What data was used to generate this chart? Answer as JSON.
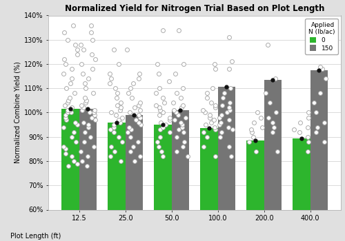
{
  "title": "Normalized Yield for Nitrogen Trial Based on Plot Length",
  "xlabel": "Plot Length (ft)",
  "ylabel": "Normalized Combine Yield (%)",
  "categories": [
    12.5,
    25.0,
    50.0,
    100.0,
    200.0,
    400.0
  ],
  "bar_values_0": [
    101.5,
    96.0,
    95.0,
    93.5,
    88.5,
    89.5
  ],
  "bar_values_150": [
    101.5,
    99.0,
    101.0,
    110.5,
    113.5,
    117.5
  ],
  "color_0": "#2db52d",
  "color_150": "#757575",
  "ylim": [
    60,
    140
  ],
  "yticks": [
    60,
    70,
    80,
    90,
    100,
    110,
    120,
    130,
    140
  ],
  "scatter_0": {
    "12.5": [
      78,
      79,
      80,
      82,
      83,
      85,
      86,
      88,
      90,
      92,
      94,
      95,
      96,
      97,
      98,
      99,
      100,
      100,
      101,
      101,
      102,
      103,
      104,
      105,
      106,
      108,
      110,
      112,
      114,
      116,
      118,
      120,
      122,
      124,
      126,
      128,
      130,
      133,
      136
    ],
    "25.0": [
      80,
      82,
      84,
      86,
      88,
      90,
      92,
      93,
      94,
      95,
      96,
      97,
      98,
      99,
      100,
      101,
      102,
      103,
      104,
      106,
      108,
      110,
      112,
      114,
      116,
      120,
      126
    ],
    "50.0": [
      82,
      84,
      86,
      88,
      90,
      92,
      93,
      94,
      95,
      96,
      97,
      98,
      99,
      100,
      101,
      102,
      103,
      104,
      106,
      108,
      110,
      113,
      116,
      120,
      134
    ],
    "100.0": [
      82,
      86,
      90,
      92,
      93,
      94,
      95,
      96,
      97,
      98,
      99,
      100,
      101,
      102,
      103,
      104,
      106,
      108,
      110,
      118,
      120
    ],
    "200.0": [
      84,
      88,
      90,
      92,
      93,
      94,
      96,
      98,
      100
    ],
    "400.0": [
      84,
      88,
      90,
      92,
      93,
      94,
      96,
      98,
      100
    ]
  },
  "scatter_150": {
    "12.5": [
      78,
      80,
      82,
      84,
      86,
      88,
      90,
      92,
      94,
      95,
      96,
      97,
      98,
      99,
      100,
      100,
      101,
      101,
      102,
      103,
      104,
      105,
      106,
      108,
      110,
      112,
      114,
      116,
      118,
      120,
      122,
      124,
      126,
      128,
      130,
      133,
      136
    ],
    "25.0": [
      80,
      82,
      84,
      86,
      88,
      90,
      92,
      93,
      94,
      95,
      96,
      97,
      98,
      99,
      100,
      101,
      102,
      103,
      104,
      106,
      108,
      110,
      112,
      114,
      116,
      126
    ],
    "50.0": [
      82,
      84,
      86,
      88,
      90,
      92,
      93,
      94,
      95,
      96,
      97,
      98,
      99,
      100,
      101,
      102,
      103,
      104,
      106,
      108,
      110,
      116,
      120,
      134
    ],
    "100.0": [
      82,
      86,
      90,
      92,
      93,
      94,
      95,
      96,
      97,
      98,
      99,
      100,
      101,
      102,
      103,
      104,
      106,
      108,
      110,
      118,
      121,
      131
    ],
    "200.0": [
      84,
      92,
      94,
      96,
      98,
      100,
      104,
      108,
      114,
      128
    ],
    "400.0": [
      88,
      92,
      94,
      96,
      100,
      104,
      108,
      114,
      118,
      119,
      126
    ]
  },
  "background_color": "#e0e0e0",
  "plot_bg_color": "#ffffff",
  "bar_width": 0.38,
  "legend_title": "Applied\nN (lb/ac)",
  "legend_entries": [
    "0",
    "150"
  ]
}
